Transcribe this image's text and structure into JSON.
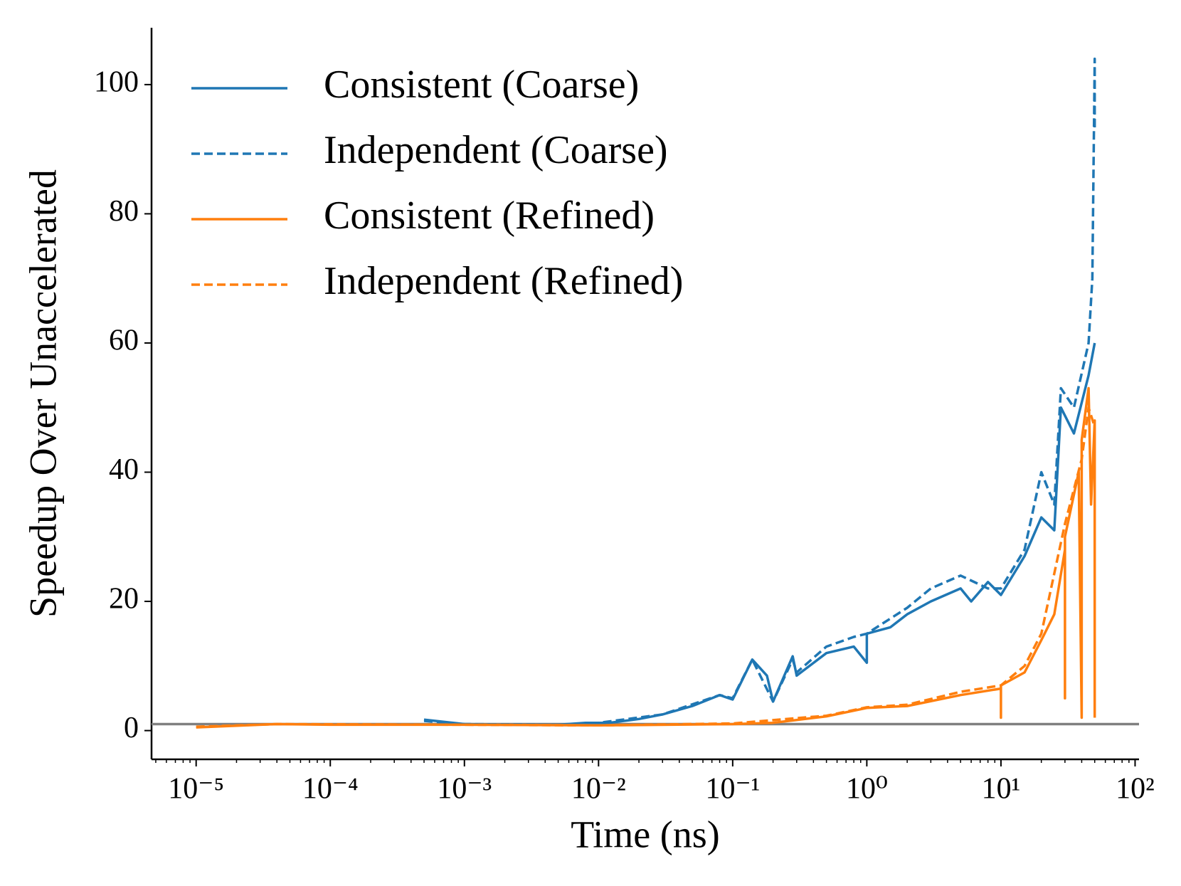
{
  "chart_data": {
    "type": "line",
    "x_label": "Time (ns)",
    "y_label": "Speedup Over Unaccelerated",
    "xscale": "log",
    "xlim": [
      4.65e-06,
      107
    ],
    "ylim": [
      -4.45,
      108.8
    ],
    "xticks": [
      {
        "value": 1e-05,
        "label": "10⁻⁵"
      },
      {
        "value": 0.0001,
        "label": "10⁻⁴"
      },
      {
        "value": 0.001,
        "label": "10⁻³"
      },
      {
        "value": 0.01,
        "label": "10⁻²"
      },
      {
        "value": 0.1,
        "label": "10⁻¹"
      },
      {
        "value": 1,
        "label": "10⁰"
      },
      {
        "value": 10,
        "label": "10¹"
      },
      {
        "value": 100,
        "label": "10²"
      }
    ],
    "yticks": [
      0,
      20,
      40,
      60,
      80,
      100
    ],
    "legend": "upper left",
    "hline": {
      "value": 1,
      "color": "#808080"
    },
    "series": [
      {
        "name": "Consistent (Coarse)",
        "color": "#1f77b4",
        "dash": false,
        "x": [
          0.0005,
          0.001,
          0.002,
          0.005,
          0.008,
          0.012,
          0.02,
          0.03,
          0.05,
          0.08,
          0.1,
          0.14,
          0.18,
          0.2,
          0.28,
          0.3,
          0.5,
          0.8,
          1,
          1,
          1.5,
          2,
          3,
          5,
          6,
          8,
          10,
          15,
          20,
          25,
          28,
          35,
          45,
          50
        ],
        "values": [
          1.7,
          1.0,
          0.9,
          0.9,
          1.2,
          1.2,
          1.8,
          2.5,
          3.8,
          5.5,
          4.8,
          11,
          8.5,
          4.5,
          11.5,
          8.5,
          12,
          13,
          10.5,
          15,
          16,
          18,
          20,
          22,
          20,
          23,
          21,
          27,
          33,
          31,
          50,
          46,
          55,
          60
        ]
      },
      {
        "name": "Independent (Coarse)",
        "color": "#1f77b4",
        "dash": true,
        "x": [
          0.0005,
          0.001,
          0.005,
          0.01,
          0.03,
          0.08,
          0.1,
          0.14,
          0.2,
          0.28,
          0.3,
          0.5,
          0.8,
          1,
          2,
          3,
          5,
          8,
          10,
          15,
          20,
          25,
          28,
          35,
          45,
          48,
          50,
          50
        ],
        "values": [
          1.5,
          1.0,
          0.9,
          1.2,
          2.5,
          5.5,
          5,
          11,
          4.5,
          11,
          9,
          13,
          14.5,
          15,
          19,
          22,
          24,
          22,
          22,
          28,
          40,
          35,
          53,
          50,
          60,
          70,
          104,
          93
        ]
      },
      {
        "name": "Consistent (Refined)",
        "color": "#ff7f0e",
        "dash": false,
        "x": [
          1e-05,
          4e-05,
          0.0001,
          0.001,
          0.01,
          0.1,
          0.2,
          0.5,
          1,
          2,
          5,
          10,
          10,
          10,
          15,
          20,
          25,
          30,
          30,
          30,
          38,
          40,
          40,
          45,
          47,
          50,
          50
        ],
        "values": [
          0.5,
          1.0,
          0.9,
          0.9,
          0.8,
          1.0,
          1.2,
          2.2,
          3.5,
          3.8,
          5.5,
          6.5,
          2,
          7,
          9,
          14,
          18,
          28,
          5,
          30,
          40,
          2,
          45,
          53,
          35,
          48,
          2
        ]
      },
      {
        "name": "Independent (Refined)",
        "color": "#ff7f0e",
        "dash": true,
        "x": [
          1e-05,
          4e-05,
          0.001,
          0.01,
          0.1,
          0.5,
          1,
          2,
          5,
          10,
          15,
          20,
          30,
          40,
          45,
          50
        ],
        "values": [
          0.6,
          1.0,
          0.9,
          0.8,
          1.1,
          2.3,
          3.6,
          4,
          6,
          7,
          10,
          15,
          32,
          42,
          50,
          47
        ]
      }
    ]
  }
}
